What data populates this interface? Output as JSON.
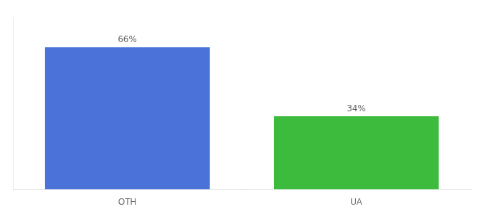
{
  "chart_data": {
    "type": "bar",
    "categories": [
      "OTH",
      "UA"
    ],
    "values": [
      66,
      34
    ],
    "value_labels": [
      "66%",
      "34%"
    ],
    "colors": [
      "#4a72d9",
      "#3dbb3d"
    ],
    "ylim": [
      0,
      80
    ],
    "grid": false,
    "data_labels": true,
    "tick_labels": "x"
  }
}
